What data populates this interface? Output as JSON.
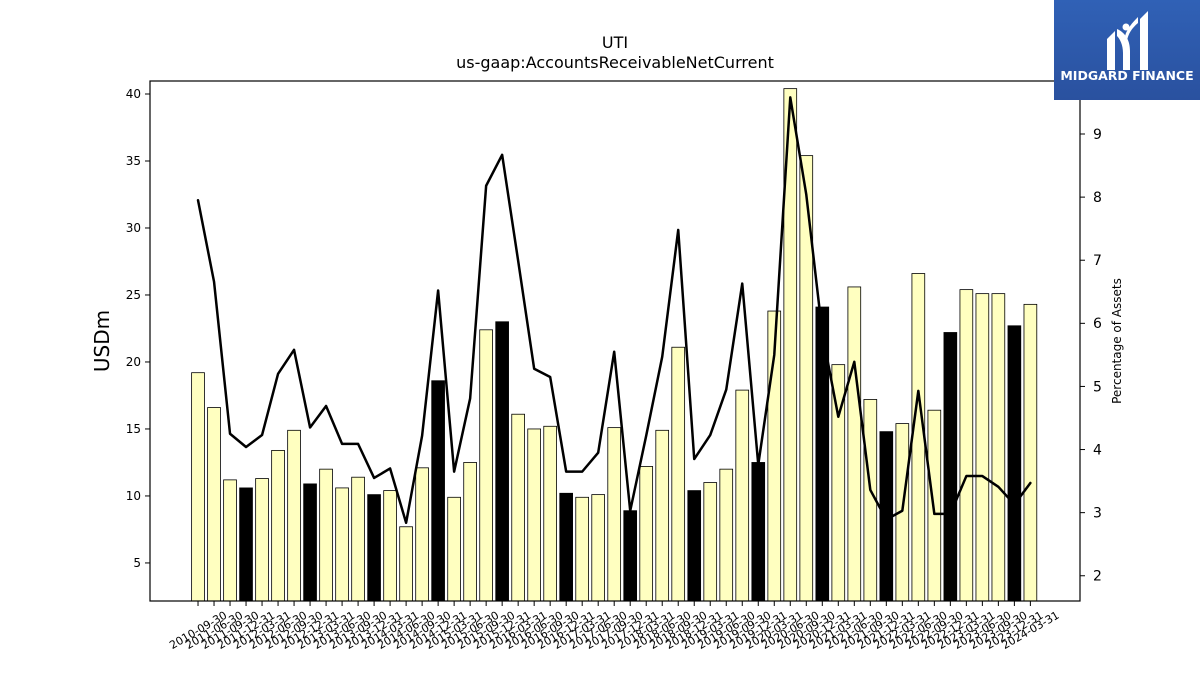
{
  "logo": {
    "text": "MIDGARD FINANCE",
    "icon": "midgard-logo-icon",
    "background": "#2c59a9"
  },
  "chart_data": {
    "type": "bar",
    "title": "UTI",
    "subtitle": "us-gaap:AccountsReceivableNetCurrent",
    "ylabel": "USDm",
    "y2label": "Percentage of Assets",
    "categories": [
      "2010-09-30",
      "2011-06-30",
      "2011-09-30",
      "2011-12-31",
      "2012-03-31",
      "2012-06-30",
      "2012-09-30",
      "2012-12-31",
      "2013-03-31",
      "2013-06-30",
      "2013-09-30",
      "2013-12-31",
      "2014-03-31",
      "2014-06-30",
      "2014-09-30",
      "2014-12-31",
      "2015-03-31",
      "2015-06-30",
      "2015-09-30",
      "2015-12-31",
      "2016-03-31",
      "2016-06-30",
      "2016-09-30",
      "2016-12-31",
      "2017-03-31",
      "2017-06-30",
      "2017-09-30",
      "2017-12-31",
      "2018-03-31",
      "2018-06-30",
      "2018-09-30",
      "2018-12-31",
      "2019-03-31",
      "2019-06-30",
      "2019-09-30",
      "2019-12-31",
      "2020-03-31",
      "2020-06-30",
      "2020-09-30",
      "2020-12-31",
      "2021-03-31",
      "2021-06-30",
      "2021-09-30",
      "2021-12-31",
      "2022-03-31",
      "2022-06-30",
      "2022-09-30",
      "2022-12-31",
      "2023-03-31",
      "2023-06-30",
      "2023-09-30",
      "2023-12-31",
      "2024-03-31"
    ],
    "series": [
      {
        "type": "bar",
        "axis": "left",
        "values": [
          19.2,
          16.6,
          11.2,
          10.6,
          11.3,
          13.4,
          14.9,
          10.9,
          12.0,
          10.6,
          11.4,
          10.1,
          10.4,
          7.7,
          12.1,
          18.6,
          9.9,
          12.5,
          22.4,
          23.0,
          16.1,
          15.0,
          15.2,
          10.2,
          9.9,
          10.1,
          15.1,
          8.9,
          12.2,
          14.9,
          21.1,
          10.4,
          11.0,
          12.0,
          17.9,
          12.5,
          23.8,
          40.4,
          35.4,
          24.1,
          19.8,
          25.6,
          17.2,
          14.8,
          15.4,
          26.6,
          16.4,
          22.2,
          25.4,
          25.1,
          25.1,
          22.7,
          24.3
        ],
        "highlight": [
          false,
          false,
          false,
          true,
          false,
          false,
          false,
          true,
          false,
          false,
          false,
          true,
          false,
          false,
          false,
          true,
          false,
          false,
          false,
          true,
          false,
          false,
          false,
          true,
          false,
          false,
          false,
          true,
          false,
          false,
          false,
          true,
          false,
          false,
          false,
          true,
          false,
          false,
          false,
          true,
          false,
          false,
          false,
          true,
          false,
          false,
          false,
          true,
          false,
          false,
          false,
          true,
          false
        ]
      },
      {
        "type": "line",
        "axis": "right",
        "values": [
          7.95,
          6.66,
          4.25,
          4.04,
          4.23,
          5.2,
          5.58,
          4.35,
          4.69,
          4.09,
          4.09,
          3.55,
          3.7,
          2.84,
          4.22,
          6.52,
          3.65,
          4.81,
          8.18,
          8.67,
          6.99,
          5.28,
          5.15,
          3.65,
          3.65,
          3.95,
          5.55,
          3.03,
          4.22,
          5.47,
          7.48,
          3.85,
          4.23,
          4.95,
          6.63,
          3.76,
          5.5,
          9.58,
          8.04,
          5.85,
          4.52,
          5.39,
          3.36,
          2.89,
          3.03,
          4.93,
          2.98,
          2.98,
          3.58,
          3.58,
          3.41,
          3.13,
          3.47
        ]
      }
    ],
    "ylim": [
      2.16,
      40.97
    ],
    "yticks": [
      5,
      10,
      15,
      20,
      25,
      30,
      35,
      40
    ],
    "y2lim": [
      1.6,
      9.84
    ],
    "y2ticks": [
      2,
      3,
      4,
      5,
      6,
      7,
      8,
      9
    ],
    "grid": false,
    "colors": {
      "bar": "#ffffc0",
      "bar_highlight": "#000000",
      "bar_edge": "#000000",
      "line": "#000000"
    }
  }
}
